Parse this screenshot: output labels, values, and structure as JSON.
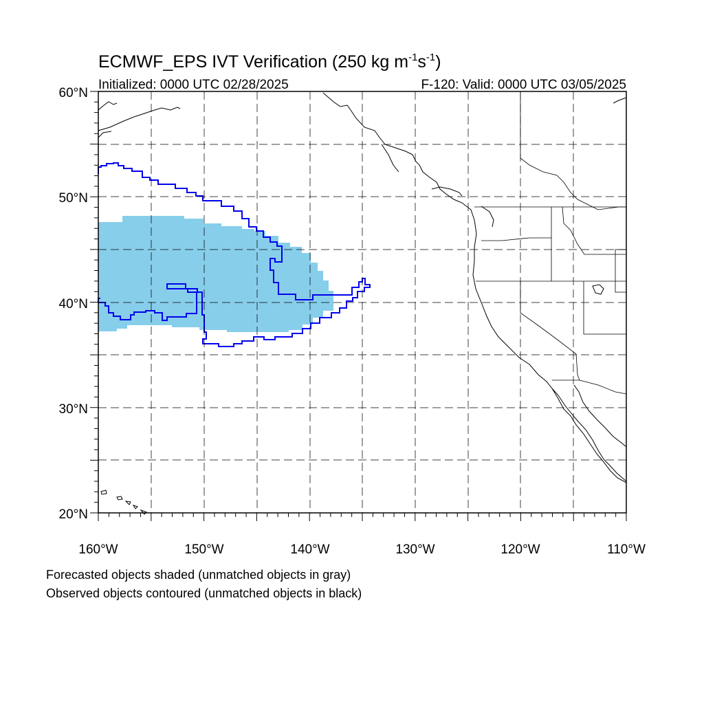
{
  "title": {
    "prefix": "ECMWF_EPS IVT Verification (250 kg m",
    "exp1": "-1",
    "mid": "s",
    "exp2": "-1",
    "suffix": ")"
  },
  "subtitle_left": "Initialized: 0000 UTC 02/28/2025",
  "subtitle_right": "F-120: Valid: 0000 UTC 03/05/2025",
  "lat_labels": [
    {
      "value": 60,
      "text": "60°N"
    },
    {
      "value": 50,
      "text": "50°N"
    },
    {
      "value": 40,
      "text": "40°N"
    },
    {
      "value": 30,
      "text": "30°N"
    },
    {
      "value": 20,
      "text": "20°N"
    }
  ],
  "lon_labels": [
    {
      "value": -160,
      "text": "160°W"
    },
    {
      "value": -150,
      "text": "150°W"
    },
    {
      "value": -140,
      "text": "140°W"
    },
    {
      "value": -130,
      "text": "130°W"
    },
    {
      "value": -120,
      "text": "120°W"
    },
    {
      "value": -110,
      "text": "110°W"
    }
  ],
  "map_extent": {
    "lon_min": -160,
    "lon_max": -110,
    "lat_min": 20,
    "lat_max": 60
  },
  "grid_interval_deg": 5,
  "colors": {
    "forecast_matched": "#87ceeb",
    "observed_matched": "#0000ee",
    "coastline": "#000000"
  },
  "notes": [
    "Forecasted objects shaded (unmatched objects in gray)",
    "Observed objects contoured (unmatched objects in black)"
  ]
}
